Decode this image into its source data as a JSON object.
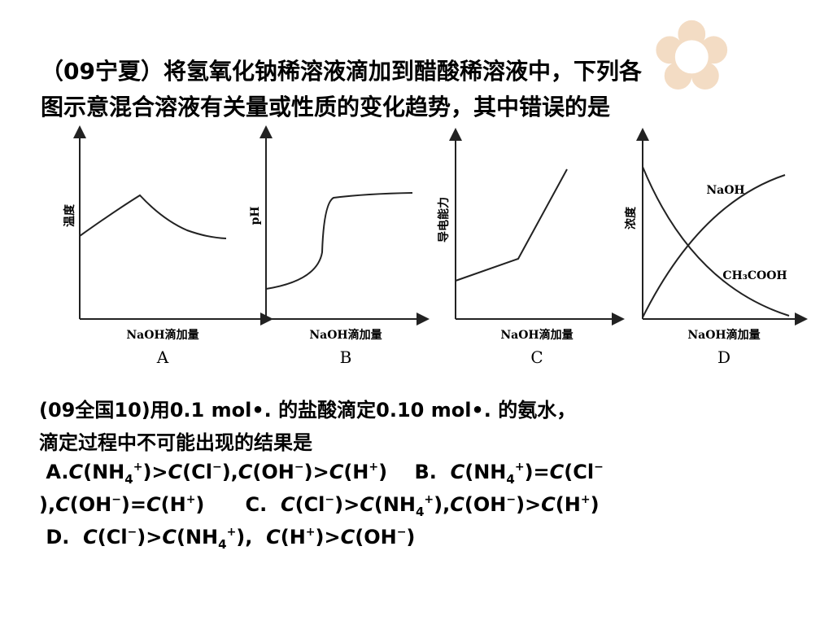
{
  "question1": {
    "lines": [
      "（09宁夏）将氢氧化钠稀溶液滴加到醋酸稀溶液中，下列各",
      "图示意混合溶液有关量或性质的变化趋势，其中错误的是"
    ]
  },
  "graphs": [
    {
      "ylabel": "温度",
      "xlabel": "NaOH滴加量",
      "letter": "A"
    },
    {
      "ylabel": "pH",
      "xlabel": "NaOH滴加量",
      "letter": "B"
    },
    {
      "ylabel": "导电能力",
      "xlabel": "NaOH滴加量",
      "letter": "C"
    },
    {
      "ylabel": "浓度",
      "xlabel": "NaOH滴加量",
      "letter": "D",
      "curve_labels": [
        "NaOH",
        "CH₃COOH"
      ]
    }
  ],
  "question2": {
    "lines": [
      "(09全国10)用0.1 mol•. 的盐酸滴定0.10 mol•. 的氨水，",
      "滴定过程中不可能出现的结果是"
    ],
    "options": [
      [
        {
          "text": " A."
        },
        {
          "text": "C",
          "style": "it"
        },
        {
          "text": "(NH"
        },
        {
          "text": "4",
          "style": "sub"
        },
        {
          "text": "+",
          "style": "sup"
        },
        {
          "text": ")>"
        },
        {
          "text": "C",
          "style": "it"
        },
        {
          "text": "(Cl"
        },
        {
          "text": "−",
          "style": "sup"
        },
        {
          "text": "),"
        },
        {
          "text": "C",
          "style": "it"
        },
        {
          "text": "(OH"
        },
        {
          "text": "−",
          "style": "sup"
        },
        {
          "text": ")>"
        },
        {
          "text": "C",
          "style": "it"
        },
        {
          "text": "(H"
        },
        {
          "text": "+",
          "style": "sup"
        },
        {
          "text": ")    B.  "
        },
        {
          "text": "C",
          "style": "it"
        },
        {
          "text": "(NH"
        },
        {
          "text": "4",
          "style": "sub"
        },
        {
          "text": "+",
          "style": "sup"
        },
        {
          "text": ")="
        },
        {
          "text": "C",
          "style": "it"
        },
        {
          "text": "(Cl"
        },
        {
          "text": "−",
          "style": "sup"
        }
      ],
      [
        {
          "text": "),"
        },
        {
          "text": "C",
          "style": "it"
        },
        {
          "text": "(OH"
        },
        {
          "text": "−",
          "style": "sup"
        },
        {
          "text": ")="
        },
        {
          "text": "C",
          "style": "it"
        },
        {
          "text": "(H"
        },
        {
          "text": "+",
          "style": "sup"
        },
        {
          "text": ")      C.  "
        },
        {
          "text": "C",
          "style": "it"
        },
        {
          "text": "(Cl"
        },
        {
          "text": "−",
          "style": "sup"
        },
        {
          "text": ")>"
        },
        {
          "text": "C",
          "style": "it"
        },
        {
          "text": "(NH"
        },
        {
          "text": "4",
          "style": "sub"
        },
        {
          "text": "+",
          "style": "sup"
        },
        {
          "text": "),"
        },
        {
          "text": "C",
          "style": "it"
        },
        {
          "text": "(OH"
        },
        {
          "text": "−",
          "style": "sup"
        },
        {
          "text": ")>"
        },
        {
          "text": "C",
          "style": "it"
        },
        {
          "text": "(H"
        },
        {
          "text": "+",
          "style": "sup"
        },
        {
          "text": ")"
        }
      ],
      [
        {
          "text": " D.  "
        },
        {
          "text": "C",
          "style": "it"
        },
        {
          "text": "(Cl"
        },
        {
          "text": "−",
          "style": "sup"
        },
        {
          "text": ")>"
        },
        {
          "text": "C",
          "style": "it"
        },
        {
          "text": "(NH"
        },
        {
          "text": "4",
          "style": "sub"
        },
        {
          "text": "+",
          "style": "sup"
        },
        {
          "text": "),  "
        },
        {
          "text": "C",
          "style": "it"
        },
        {
          "text": "(H"
        },
        {
          "text": "+",
          "style": "sup"
        },
        {
          "text": ")>"
        },
        {
          "text": "C",
          "style": "it"
        },
        {
          "text": "(OH"
        },
        {
          "text": "−",
          "style": "sup"
        },
        {
          "text": ")"
        }
      ]
    ]
  }
}
